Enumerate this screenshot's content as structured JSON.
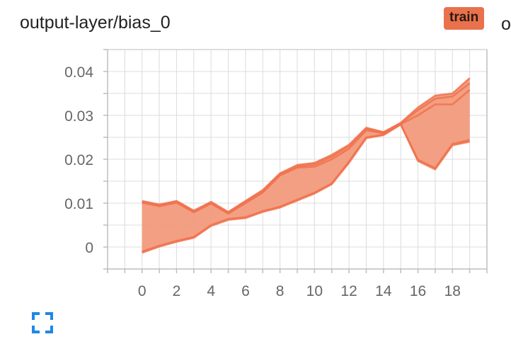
{
  "card": {
    "title": "output-layer/bias_0",
    "run_badge": "train",
    "clipped_text": "o"
  },
  "colors": {
    "series": "#f0724e",
    "band_fill": "#f29a7c",
    "badge": "#e9714b",
    "grid": "#dcdcdc",
    "axis": "#bdbdbd",
    "icon": "#1e88e5"
  },
  "icons": {
    "fullscreen": "fullscreen-expand-icon"
  },
  "chart_data": {
    "type": "area",
    "title": "output-layer/bias_0",
    "xlabel": "",
    "ylabel": "",
    "x": [
      0,
      1,
      2,
      3,
      4,
      5,
      6,
      7,
      8,
      9,
      10,
      11,
      12,
      13,
      14,
      15,
      16,
      17,
      18,
      19
    ],
    "xlim": [
      -2,
      20
    ],
    "ylim": [
      -0.005,
      0.045
    ],
    "xticks": [
      0,
      2,
      4,
      6,
      8,
      10,
      12,
      14,
      16,
      18
    ],
    "yticks": [
      0,
      0.01,
      0.02,
      0.03,
      0.04
    ],
    "xtick_labels": [
      "0",
      "2",
      "4",
      "6",
      "8",
      "10",
      "12",
      "14",
      "16",
      "18"
    ],
    "ytick_labels": [
      "0",
      "0.01",
      "0.02",
      "0.03",
      "0.04"
    ],
    "grid": true,
    "series": [
      {
        "values": [
          0.0105,
          0.0097,
          0.0105,
          0.0083,
          0.0103,
          0.008,
          0.0105,
          0.013,
          0.0168,
          0.0187,
          0.0192,
          0.021,
          0.0233,
          0.0272,
          0.0262,
          0.0283,
          0.0318,
          0.0345,
          0.035,
          0.0385
        ]
      },
      {
        "values": [
          0.0103,
          0.0095,
          0.0103,
          0.0081,
          0.0101,
          0.0078,
          0.0103,
          0.0127,
          0.0166,
          0.0184,
          0.0188,
          0.0206,
          0.023,
          0.027,
          0.0261,
          0.0282,
          0.0312,
          0.0338,
          0.0343,
          0.0373
        ]
      },
      {
        "values": [
          0.0101,
          0.0093,
          0.0101,
          0.0079,
          0.0099,
          0.0076,
          0.01,
          0.0124,
          0.0163,
          0.0181,
          0.0183,
          0.02,
          0.0224,
          0.0266,
          0.0259,
          0.028,
          0.03,
          0.0325,
          0.0325,
          0.0358
        ]
      },
      {
        "values": [
          -0.001,
          0.0003,
          0.0014,
          0.0023,
          0.005,
          0.0064,
          0.0068,
          0.0082,
          0.0092,
          0.0108,
          0.0124,
          0.0145,
          0.0195,
          0.025,
          0.0256,
          0.028,
          0.0199,
          0.018,
          0.0235,
          0.0244
        ]
      },
      {
        "values": [
          -0.0013,
          0.0001,
          0.0012,
          0.0021,
          0.0048,
          0.0062,
          0.0066,
          0.008,
          0.009,
          0.0106,
          0.0122,
          0.0143,
          0.0192,
          0.0248,
          0.0255,
          0.0279,
          0.0196,
          0.0177,
          0.0232,
          0.024
        ]
      }
    ]
  }
}
